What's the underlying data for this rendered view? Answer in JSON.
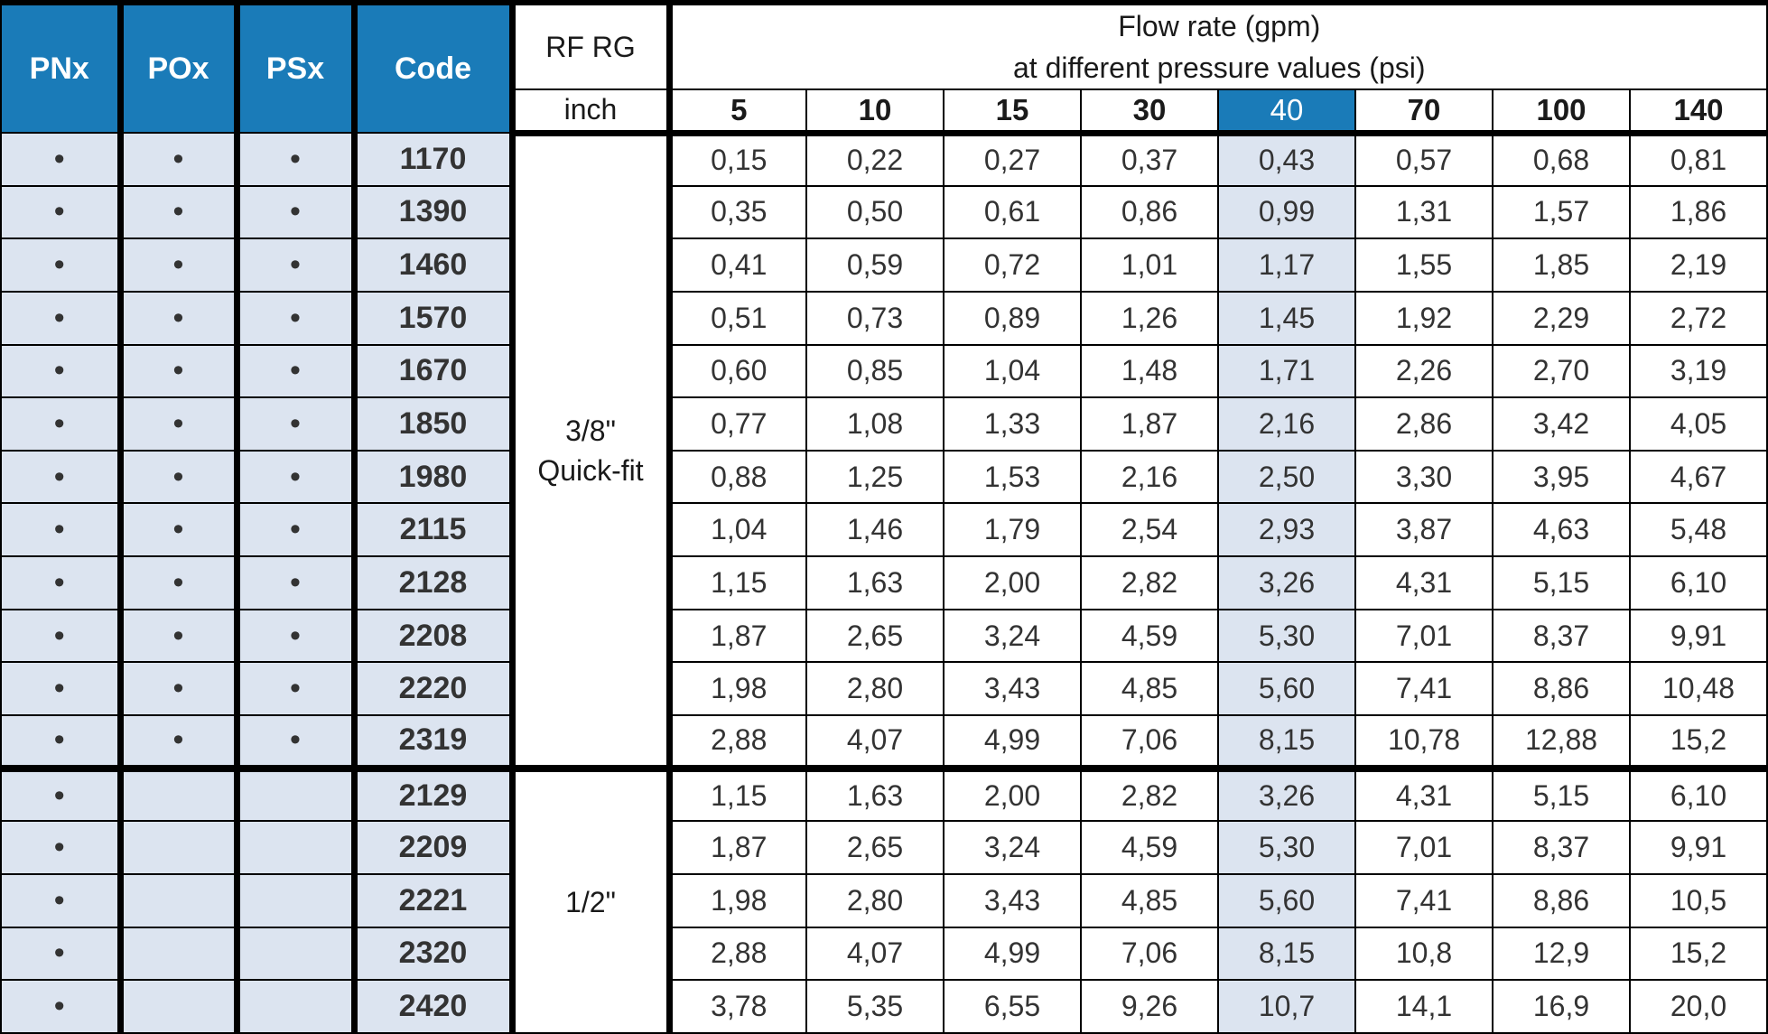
{
  "header": {
    "pnx": "PNx",
    "pox": "POx",
    "psx": "PSx",
    "code": "Code",
    "rfrg": "RF RG",
    "inch": "inch",
    "flow_line1": "Flow rate (gpm)",
    "flow_line2": "at different pressure values (psi)",
    "pressures": [
      "5",
      "10",
      "15",
      "30",
      "40",
      "70",
      "100",
      "140"
    ],
    "highlight_pressure": "40"
  },
  "groups": [
    {
      "size_line1": "3/8\"",
      "size_line2": "Quick-fit",
      "rows": [
        {
          "pnx": "•",
          "pox": "•",
          "psx": "•",
          "code": "1170",
          "values": [
            "0,15",
            "0,22",
            "0,27",
            "0,37",
            "0,43",
            "0,57",
            "0,68",
            "0,81"
          ]
        },
        {
          "pnx": "•",
          "pox": "•",
          "psx": "•",
          "code": "1390",
          "values": [
            "0,35",
            "0,50",
            "0,61",
            "0,86",
            "0,99",
            "1,31",
            "1,57",
            "1,86"
          ]
        },
        {
          "pnx": "•",
          "pox": "•",
          "psx": "•",
          "code": "1460",
          "values": [
            "0,41",
            "0,59",
            "0,72",
            "1,01",
            "1,17",
            "1,55",
            "1,85",
            "2,19"
          ]
        },
        {
          "pnx": "•",
          "pox": "•",
          "psx": "•",
          "code": "1570",
          "values": [
            "0,51",
            "0,73",
            "0,89",
            "1,26",
            "1,45",
            "1,92",
            "2,29",
            "2,72"
          ]
        },
        {
          "pnx": "•",
          "pox": "•",
          "psx": "•",
          "code": "1670",
          "values": [
            "0,60",
            "0,85",
            "1,04",
            "1,48",
            "1,71",
            "2,26",
            "2,70",
            "3,19"
          ]
        },
        {
          "pnx": "•",
          "pox": "•",
          "psx": "•",
          "code": "1850",
          "values": [
            "0,77",
            "1,08",
            "1,33",
            "1,87",
            "2,16",
            "2,86",
            "3,42",
            "4,05"
          ]
        },
        {
          "pnx": "•",
          "pox": "•",
          "psx": "•",
          "code": "1980",
          "values": [
            "0,88",
            "1,25",
            "1,53",
            "2,16",
            "2,50",
            "3,30",
            "3,95",
            "4,67"
          ]
        },
        {
          "pnx": "•",
          "pox": "•",
          "psx": "•",
          "code": "2115",
          "values": [
            "1,04",
            "1,46",
            "1,79",
            "2,54",
            "2,93",
            "3,87",
            "4,63",
            "5,48"
          ]
        },
        {
          "pnx": "•",
          "pox": "•",
          "psx": "•",
          "code": "2128",
          "values": [
            "1,15",
            "1,63",
            "2,00",
            "2,82",
            "3,26",
            "4,31",
            "5,15",
            "6,10"
          ]
        },
        {
          "pnx": "•",
          "pox": "•",
          "psx": "•",
          "code": "2208",
          "values": [
            "1,87",
            "2,65",
            "3,24",
            "4,59",
            "5,30",
            "7,01",
            "8,37",
            "9,91"
          ]
        },
        {
          "pnx": "•",
          "pox": "•",
          "psx": "•",
          "code": "2220",
          "values": [
            "1,98",
            "2,80",
            "3,43",
            "4,85",
            "5,60",
            "7,41",
            "8,86",
            "10,48"
          ]
        },
        {
          "pnx": "•",
          "pox": "•",
          "psx": "•",
          "code": "2319",
          "values": [
            "2,88",
            "4,07",
            "4,99",
            "7,06",
            "8,15",
            "10,78",
            "12,88",
            "15,2"
          ]
        }
      ]
    },
    {
      "size_line1": "1/2\"",
      "size_line2": "",
      "rows": [
        {
          "pnx": "•",
          "pox": "",
          "psx": "",
          "code": "2129",
          "values": [
            "1,15",
            "1,63",
            "2,00",
            "2,82",
            "3,26",
            "4,31",
            "5,15",
            "6,10"
          ]
        },
        {
          "pnx": "•",
          "pox": "",
          "psx": "",
          "code": "2209",
          "values": [
            "1,87",
            "2,65",
            "3,24",
            "4,59",
            "5,30",
            "7,01",
            "8,37",
            "9,91"
          ]
        },
        {
          "pnx": "•",
          "pox": "",
          "psx": "",
          "code": "2221",
          "values": [
            "1,98",
            "2,80",
            "3,43",
            "4,85",
            "5,60",
            "7,41",
            "8,86",
            "10,5"
          ]
        },
        {
          "pnx": "•",
          "pox": "",
          "psx": "",
          "code": "2320",
          "values": [
            "2,88",
            "4,07",
            "4,99",
            "7,06",
            "8,15",
            "10,8",
            "12,9",
            "15,2"
          ]
        },
        {
          "pnx": "•",
          "pox": "",
          "psx": "",
          "code": "2420",
          "values": [
            "3,78",
            "5,35",
            "6,55",
            "9,26",
            "10,7",
            "14,1",
            "16,9",
            "20,0"
          ]
        }
      ]
    }
  ],
  "colors": {
    "header_blue": "#1a7bb8",
    "light_cell": "#dce4f0",
    "border": "#000000"
  }
}
